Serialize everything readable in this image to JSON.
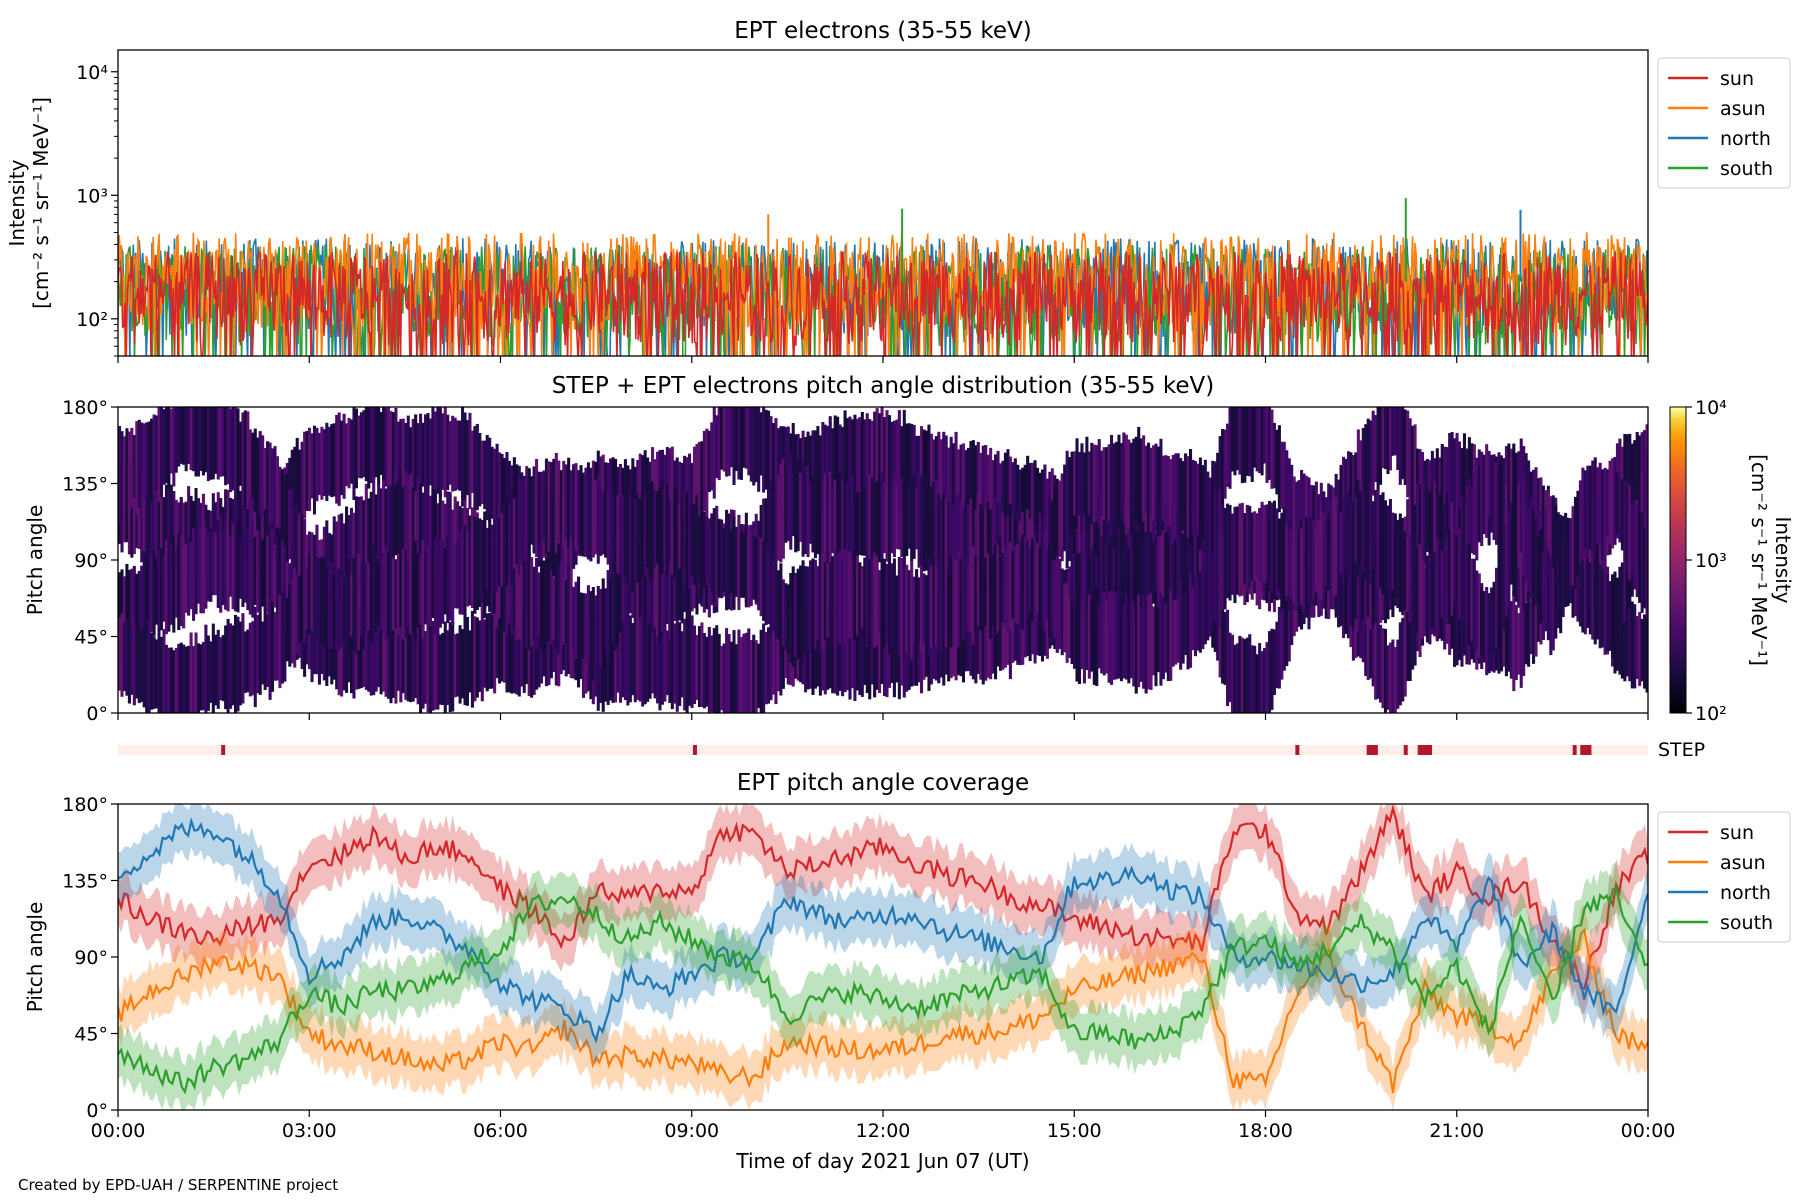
{
  "figure": {
    "footer": "Created by EPD-UAH / SERPENTINE project",
    "xlabel": "Time of day 2021 Jun 07 (UT)",
    "x_ticks": [
      "00:00",
      "03:00",
      "06:00",
      "09:00",
      "12:00",
      "15:00",
      "18:00",
      "21:00",
      "00:00"
    ]
  },
  "chart_data": [
    {
      "type": "line",
      "title": "EPT electrons (35-55 keV)",
      "ylabel_line1": "Intensity",
      "ylabel_line2": "[cm⁻² s⁻¹ sr⁻¹ MeV⁻¹]",
      "y_scale": "log",
      "ylim": [
        50,
        15000
      ],
      "y_ticks": [
        {
          "value": 100,
          "label": "10²"
        },
        {
          "value": 1000,
          "label": "10³"
        },
        {
          "value": 10000,
          "label": "10⁴"
        }
      ],
      "x_range_hours": [
        0,
        24
      ],
      "legend_position": "outside-right",
      "series": [
        {
          "name": "sun",
          "color": "#d62728",
          "typical_range": [
            60,
            350
          ]
        },
        {
          "name": "asun",
          "color": "#ff7f0e",
          "typical_range": [
            80,
            500
          ]
        },
        {
          "name": "north",
          "color": "#1f77b4",
          "typical_range": [
            70,
            450
          ]
        },
        {
          "name": "south",
          "color": "#2ca02c",
          "typical_range": [
            60,
            400
          ]
        }
      ],
      "notable_peaks": [
        {
          "series": "south",
          "x_hour": 20.2,
          "value": 950
        },
        {
          "series": "south",
          "x_hour": 12.3,
          "value": 780
        },
        {
          "series": "north",
          "x_hour": 22.0,
          "value": 760
        },
        {
          "series": "asun",
          "x_hour": 10.2,
          "value": 700
        }
      ]
    },
    {
      "type": "heatmap",
      "title": "STEP + EPT electrons pitch angle distribution (35-55 keV)",
      "ylabel": "Pitch angle",
      "ylim": [
        0,
        180
      ],
      "y_ticks": [
        {
          "value": 0,
          "label": "0°"
        },
        {
          "value": 45,
          "label": "45°"
        },
        {
          "value": 90,
          "label": "90°"
        },
        {
          "value": 135,
          "label": "135°"
        },
        {
          "value": 180,
          "label": "180°"
        }
      ],
      "colorscale": "inferno",
      "color_scale_type": "log",
      "colorbar": {
        "label_line1": "Intensity",
        "label_line2": "[cm⁻² s⁻¹ sr⁻¹ MeV⁻¹]",
        "range": [
          100,
          10000
        ],
        "ticks": [
          {
            "value": 100,
            "label": "10²"
          },
          {
            "value": 1000,
            "label": "10³"
          },
          {
            "value": 10000,
            "label": "10⁴"
          }
        ]
      },
      "typical_intensity": [
        100,
        400
      ]
    },
    {
      "type": "table",
      "label": "STEP",
      "description_of_marks": "STEP data availability strip; marks at given hours",
      "marks_hours": [
        1.65,
        9.05,
        18.5,
        19.65,
        19.7,
        20.2,
        20.45,
        20.55,
        22.85,
        23.0,
        23.05
      ]
    },
    {
      "type": "line",
      "title": "EPT pitch angle coverage",
      "ylabel": "Pitch angle",
      "ylim": [
        0,
        180
      ],
      "y_ticks": [
        {
          "value": 0,
          "label": "0°"
        },
        {
          "value": 45,
          "label": "45°"
        },
        {
          "value": 90,
          "label": "90°"
        },
        {
          "value": 135,
          "label": "135°"
        },
        {
          "value": 180,
          "label": "180°"
        }
      ],
      "shaded_band_halfwidth_deg": 15,
      "legend_position": "outside-right",
      "series": [
        {
          "name": "sun",
          "color": "#d62728",
          "x": [
            0,
            0.5,
            1,
            1.5,
            2,
            2.5,
            3,
            3.5,
            4,
            4.5,
            5,
            5.5,
            6,
            6.5,
            7,
            7.5,
            8,
            8.5,
            9,
            9.5,
            10,
            10.5,
            11,
            11.5,
            12,
            12.5,
            13,
            13.5,
            14,
            14.5,
            15,
            15.5,
            16,
            16.5,
            17,
            17.5,
            18,
            18.5,
            19,
            19.5,
            20,
            20.5,
            21,
            21.5,
            22,
            22.5,
            23,
            23.5,
            24
          ],
          "y": [
            125,
            112,
            105,
            100,
            108,
            112,
            145,
            150,
            162,
            148,
            155,
            150,
            130,
            118,
            98,
            128,
            125,
            130,
            128,
            165,
            162,
            140,
            145,
            150,
            155,
            145,
            138,
            135,
            125,
            120,
            112,
            108,
            102,
            100,
            98,
            165,
            165,
            115,
            108,
            140,
            175,
            125,
            140,
            125,
            135,
            100,
            75,
            130,
            150
          ]
        },
        {
          "name": "asun",
          "color": "#ff7f0e",
          "x": [
            0,
            0.5,
            1,
            1.5,
            2,
            2.5,
            3,
            3.5,
            4,
            4.5,
            5,
            5.5,
            6,
            6.5,
            7,
            7.5,
            8,
            8.5,
            9,
            9.5,
            10,
            10.5,
            11,
            11.5,
            12,
            12.5,
            13,
            13.5,
            14,
            14.5,
            15,
            15.5,
            16,
            16.5,
            17,
            17.5,
            18,
            18.5,
            19,
            19.5,
            20,
            20.5,
            21,
            21.5,
            22,
            22.5,
            23,
            23.5,
            24
          ],
          "y": [
            55,
            70,
            78,
            88,
            85,
            80,
            45,
            38,
            35,
            30,
            25,
            30,
            40,
            35,
            48,
            30,
            32,
            30,
            28,
            20,
            20,
            40,
            38,
            35,
            35,
            38,
            45,
            45,
            48,
            55,
            70,
            75,
            80,
            85,
            90,
            18,
            15,
            70,
            90,
            50,
            15,
            70,
            55,
            50,
            40,
            80,
            100,
            45,
            35
          ]
        },
        {
          "name": "north",
          "color": "#1f77b4",
          "x": [
            0,
            0.5,
            1,
            1.5,
            2,
            2.5,
            3,
            3.5,
            4,
            4.5,
            5,
            5.5,
            6,
            6.5,
            7,
            7.5,
            8,
            8.5,
            9,
            9.5,
            10,
            10.5,
            11,
            11.5,
            12,
            12.5,
            13,
            13.5,
            14,
            14.5,
            15,
            15.5,
            16,
            16.5,
            17,
            17.5,
            18,
            18.5,
            19,
            19.5,
            20,
            20.5,
            21,
            21.5,
            22,
            22.5,
            23,
            23.5,
            24
          ],
          "y": [
            140,
            150,
            165,
            165,
            150,
            130,
            80,
            90,
            110,
            115,
            105,
            95,
            75,
            65,
            60,
            45,
            80,
            70,
            80,
            90,
            90,
            125,
            115,
            110,
            115,
            115,
            105,
            100,
            95,
            90,
            135,
            135,
            140,
            130,
            125,
            90,
            90,
            85,
            80,
            75,
            80,
            115,
            95,
            135,
            85,
            105,
            70,
            55,
            130
          ]
        },
        {
          "name": "south",
          "color": "#2ca02c",
          "x": [
            0,
            0.5,
            1,
            1.5,
            2,
            2.5,
            3,
            3.5,
            4,
            4.5,
            5,
            5.5,
            6,
            6.5,
            7,
            7.5,
            8,
            8.5,
            9,
            9.5,
            10,
            10.5,
            11,
            11.5,
            12,
            12.5,
            13,
            13.5,
            14,
            14.5,
            15,
            15.5,
            16,
            16.5,
            17,
            17.5,
            18,
            18.5,
            19,
            19.5,
            20,
            20.5,
            21,
            21.5,
            22,
            22.5,
            23,
            23.5,
            24
          ],
          "y": [
            35,
            25,
            15,
            25,
            30,
            40,
            70,
            60,
            70,
            70,
            75,
            85,
            95,
            120,
            125,
            115,
            100,
            110,
            100,
            90,
            85,
            55,
            65,
            70,
            65,
            60,
            65,
            70,
            75,
            80,
            45,
            45,
            40,
            45,
            60,
            95,
            100,
            85,
            95,
            110,
            95,
            65,
            85,
            45,
            115,
            60,
            120,
            125,
            80
          ]
        }
      ]
    }
  ]
}
